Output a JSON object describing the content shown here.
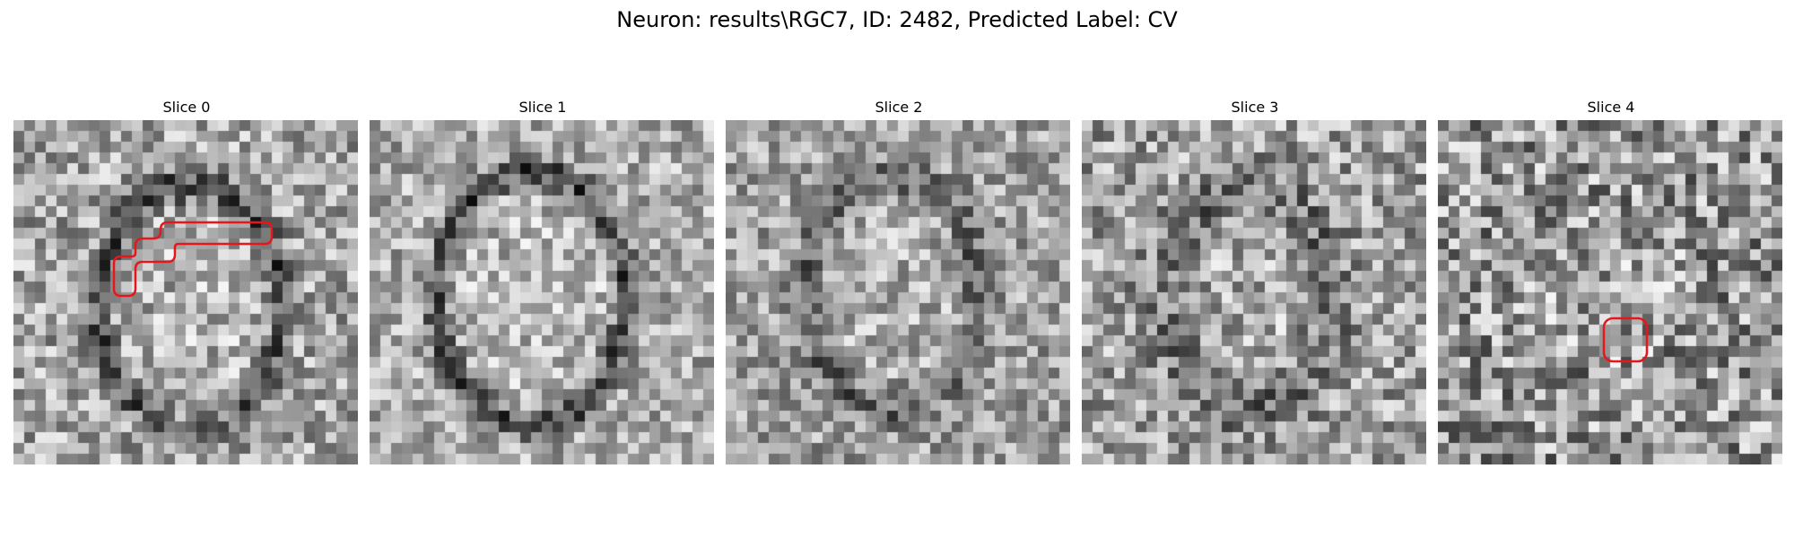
{
  "figure": {
    "title": "Neuron: results\\RGC7, ID: 2482, Predicted Label: CV"
  },
  "colormap": "gray",
  "highlight_color": "#e8161b",
  "grid_size": 32,
  "slices": [
    {
      "title": "Slice 0",
      "membrane": "partial",
      "highlighted": true
    },
    {
      "title": "Slice 1",
      "membrane": "oval",
      "highlighted": false
    },
    {
      "title": "Slice 2",
      "membrane": "faint-oval",
      "highlighted": false
    },
    {
      "title": "Slice 3",
      "membrane": "diffuse",
      "highlighted": false
    },
    {
      "title": "Slice 4",
      "membrane": "none",
      "highlighted": true
    }
  ]
}
